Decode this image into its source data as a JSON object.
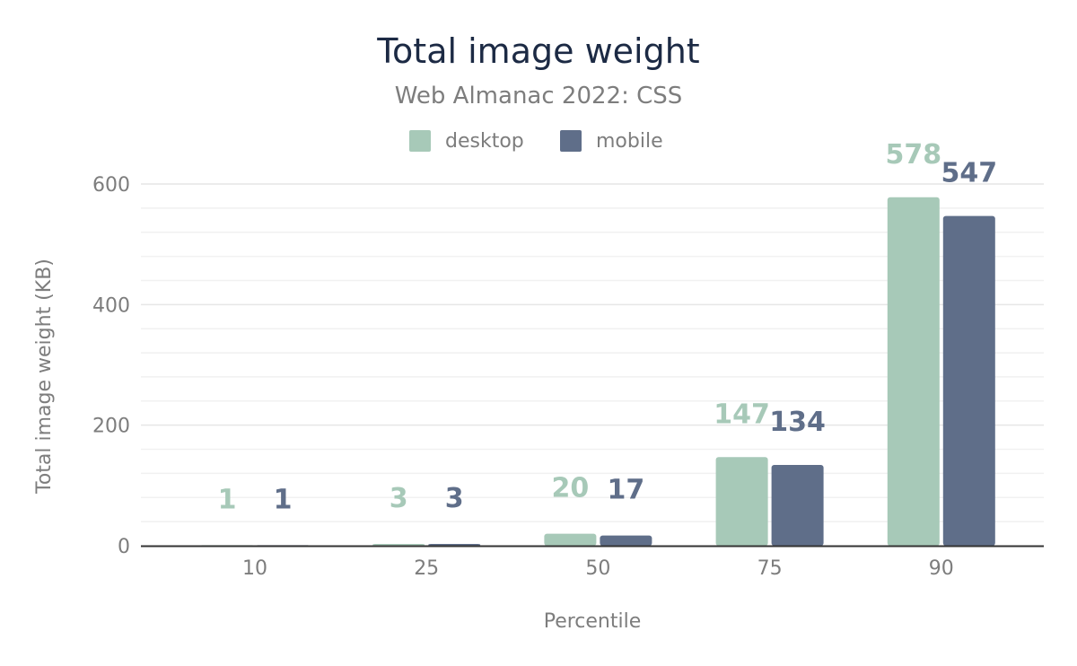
{
  "chart_data": {
    "type": "bar",
    "title": "Total image weight",
    "subtitle": "Web Almanac 2022: CSS",
    "xlabel": "Percentile",
    "ylabel": "Total image weight (KB)",
    "categories": [
      "10",
      "25",
      "50",
      "75",
      "90"
    ],
    "y_ticks": [
      "0",
      "200",
      "400",
      "600"
    ],
    "ylim": [
      0,
      600
    ],
    "grid": true,
    "legend_position": "top-center",
    "series": [
      {
        "name": "desktop",
        "color": "#a7c9b8",
        "values": [
          1,
          3,
          20,
          147,
          578
        ]
      },
      {
        "name": "mobile",
        "color": "#5f6e89",
        "values": [
          1,
          3,
          17,
          134,
          547
        ]
      }
    ]
  }
}
